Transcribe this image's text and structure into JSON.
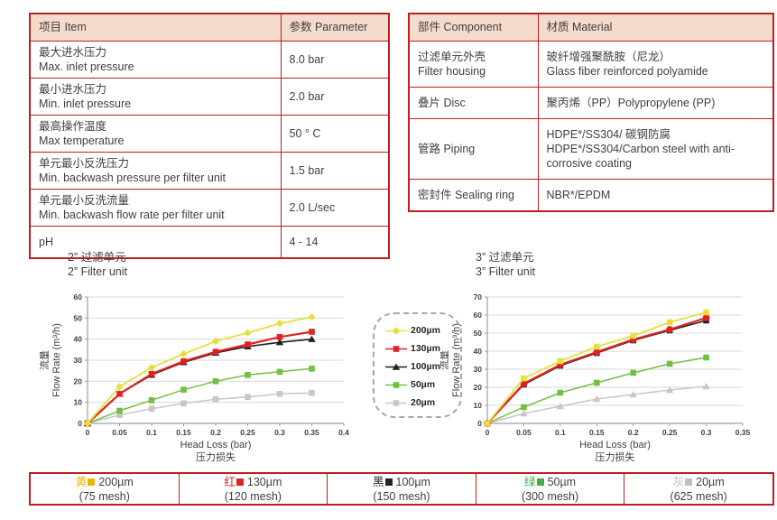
{
  "colors": {
    "border_red": "#bf1e1e",
    "header_bg": "#f5dbcc",
    "text_dark": "#3f3f3f",
    "grid": "#d9d9d9",
    "axis": "#9f9f9f",
    "legend_border": "#a8a8a8"
  },
  "spec_table": {
    "headers": [
      "项目 Item",
      "参数 Parameter"
    ],
    "rows": [
      {
        "lines": [
          "最大进水压力",
          "Max. inlet pressure"
        ],
        "value": "8.0 bar"
      },
      {
        "lines": [
          "最小进水压力",
          "Min. inlet pressure"
        ],
        "value": "2.0 bar"
      },
      {
        "lines": [
          "最高操作温度",
          "Max temperature"
        ],
        "value": "50 ° C"
      },
      {
        "lines": [
          "单元最小反洗压力",
          "Min. backwash pressure per filter unit"
        ],
        "value": "1.5 bar"
      },
      {
        "lines": [
          "单元最小反洗流量",
          "Min. backwash flow rate per filter unit"
        ],
        "value": "2.0 L/sec"
      },
      {
        "lines": [
          "pH"
        ],
        "value": "4 - 14"
      }
    ]
  },
  "material_table": {
    "headers": [
      "部件 Component",
      "材质 Material"
    ],
    "rows": [
      {
        "component": [
          "过滤单元外壳",
          "Filter housing"
        ],
        "material": [
          "玻纤增强聚酰胺（尼龙）",
          "Glass fiber reinforced polyamide"
        ]
      },
      {
        "component": [
          "叠片 Disc"
        ],
        "material": [
          "聚丙烯（PP）Polypropylene (PP)"
        ]
      },
      {
        "component": [
          "管路 Piping"
        ],
        "material": [
          "HDPE*/SS304/ 碳钢防腐",
          "HDPE*/SS304/Carbon steel with anti-corrosive coating"
        ]
      },
      {
        "component": [
          "密封件 Sealing ring"
        ],
        "material": [
          "NBR*/EPDM"
        ]
      }
    ]
  },
  "chart_data": [
    {
      "type": "line",
      "title_zh": "2” 过滤单元",
      "title_en": "2” Filter unit",
      "xlabel_en": "Head Loss (bar)",
      "xlabel_zh": "压力损失",
      "ylabel_zh": "流量",
      "ylabel_en": "Flow Rate (m³/h)",
      "xlim": [
        0,
        0.4
      ],
      "ylim": [
        0,
        60
      ],
      "xtick_step": 0.05,
      "ytick_step": 10,
      "grid": "horizontal",
      "x": [
        0,
        0.05,
        0.1,
        0.15,
        0.2,
        0.25,
        0.3,
        0.35
      ],
      "series": [
        {
          "name": "200µm",
          "marker": "diamond",
          "color": "#e8df3e",
          "width": 1.8,
          "values": [
            0,
            17.5,
            26.5,
            33,
            39,
            43,
            47.5,
            50.5
          ]
        },
        {
          "name": "130µm",
          "marker": "square",
          "color": "#e02222",
          "width": 2.2,
          "values": [
            0,
            14,
            23.5,
            29.5,
            34,
            37.5,
            41,
            43.5
          ]
        },
        {
          "name": "100µm",
          "marker": "triangle",
          "color": "#221f1f",
          "width": 1.6,
          "values": [
            0,
            14,
            23,
            29,
            33.5,
            36.5,
            38.5,
            40
          ]
        },
        {
          "name": "50µm",
          "marker": "square",
          "color": "#72bf44",
          "width": 1.5,
          "values": [
            0,
            6,
            11,
            16,
            20,
            23,
            24.5,
            26
          ]
        },
        {
          "name": "20µm",
          "marker": "square",
          "color": "#c7c7c7",
          "width": 1.5,
          "values": [
            0,
            4,
            7,
            9.5,
            11.5,
            12.5,
            14,
            14.5
          ]
        }
      ]
    },
    {
      "type": "line",
      "title_zh": "3” 过滤单元",
      "title_en": "3” Filter unit",
      "xlabel_en": "Head Loss (bar)",
      "xlabel_zh": "压力损失",
      "ylabel_zh": "流量",
      "ylabel_en": "Flow Rate (m³/h)",
      "xlim": [
        0,
        0.35
      ],
      "ylim": [
        0,
        70
      ],
      "xtick_step": 0.05,
      "ytick_step": 10,
      "grid": "horizontal",
      "x": [
        0,
        0.05,
        0.1,
        0.15,
        0.2,
        0.25,
        0.3
      ],
      "series": [
        {
          "name": "200µm",
          "marker": "square",
          "color": "#e8df3e",
          "width": 1.8,
          "values": [
            0,
            25,
            34.5,
            42.5,
            48.5,
            56,
            61.5
          ]
        },
        {
          "name": "130µm",
          "marker": "circle",
          "color": "#e02222",
          "width": 2.2,
          "values": [
            0,
            22,
            32.5,
            39.5,
            46.5,
            52,
            58.5
          ]
        },
        {
          "name": "100µm",
          "marker": "square",
          "color": "#221f1f",
          "width": 1.6,
          "values": [
            0,
            21.5,
            32,
            39,
            46,
            51.5,
            57
          ]
        },
        {
          "name": "50µm",
          "marker": "square",
          "color": "#72bf44",
          "width": 1.5,
          "values": [
            0,
            9,
            17,
            22.5,
            28,
            33,
            36.5
          ]
        },
        {
          "name": "20µm",
          "marker": "triangle",
          "color": "#c7c7c7",
          "width": 1.5,
          "values": [
            0,
            5.5,
            9.5,
            13.5,
            16,
            18.5,
            20.5
          ]
        }
      ]
    }
  ],
  "mid_legend": {
    "items": [
      {
        "label": "200µm",
        "marker": "diamond",
        "color": "#e8df3e"
      },
      {
        "label": "130µm",
        "marker": "square",
        "color": "#e02222"
      },
      {
        "label": "100µm",
        "marker": "triangle",
        "color": "#221f1f"
      },
      {
        "label": "50µm",
        "marker": "square",
        "color": "#72bf44"
      },
      {
        "label": "20µm",
        "marker": "square",
        "color": "#c7c7c7"
      }
    ]
  },
  "bottom_legend": {
    "items": [
      {
        "zh": "黄",
        "size": "200µm",
        "mesh": "(75 mesh)",
        "color": "#f0b400"
      },
      {
        "zh": "红",
        "size": "130µm",
        "mesh": "(120 mesh)",
        "color": "#e02222"
      },
      {
        "zh": "黑",
        "size": "100µm",
        "mesh": "(150 mesh)",
        "color": "#262223"
      },
      {
        "zh": "绿",
        "size": "50µm",
        "mesh": "(300 mesh)",
        "color": "#3fae49"
      },
      {
        "zh": "灰",
        "size": "20µm",
        "mesh": "(625 mesh)",
        "color": "#bfbfbf"
      }
    ]
  }
}
